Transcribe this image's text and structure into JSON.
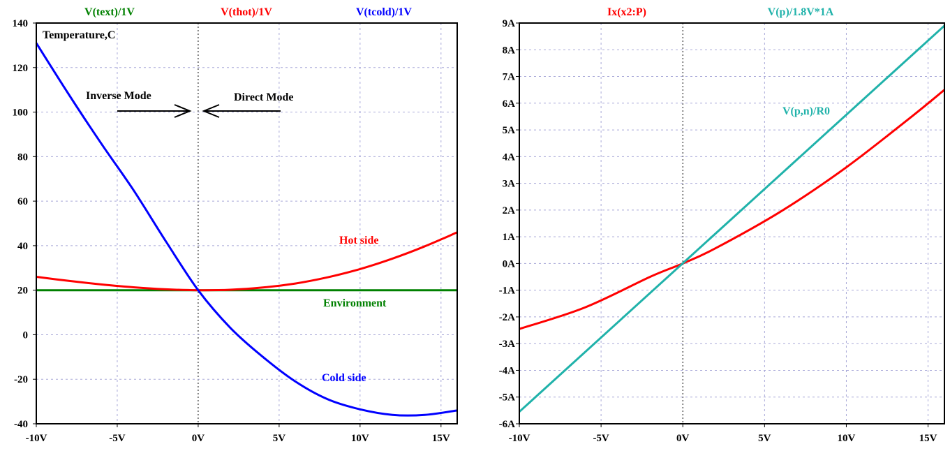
{
  "chart_data": [
    {
      "type": "line",
      "trace_names": [
        "V(text)/1V",
        "V(thot)/1V",
        "V(tcold)/1V"
      ],
      "xlim": [
        -10,
        16
      ],
      "ylim": [
        -40,
        140
      ],
      "x_ticks": [
        "-10V",
        "-5V",
        "0V",
        "5V",
        "10V",
        "15V"
      ],
      "y_ticks": [
        "140",
        "120",
        "100",
        "80",
        "60",
        "40",
        "20",
        "0",
        "-20",
        "-40"
      ],
      "grid": true,
      "inner_label": "Temperature,C",
      "annotations": {
        "inverse": "Inverse Mode",
        "direct": "Direct Mode",
        "hot": "Hot side",
        "env": "Environment",
        "cold": "Cold side"
      },
      "series": [
        {
          "name": "V(text)/1V",
          "color": "#008000",
          "x": [
            -10,
            16
          ],
          "y": [
            20,
            20
          ]
        },
        {
          "name": "V(thot)/1V",
          "color": "#ff0000",
          "x": [
            -10,
            -8,
            -6,
            -4,
            -2,
            0,
            2,
            4,
            6,
            8,
            10,
            12,
            14,
            16
          ],
          "y": [
            26,
            24.2,
            22.6,
            21.3,
            20.4,
            20,
            20.2,
            21.2,
            23,
            25.8,
            29.5,
            34.2,
            39.7,
            46
          ]
        },
        {
          "name": "V(tcold)/1V",
          "color": "#0000ff",
          "x": [
            -10,
            -8,
            -6,
            -4,
            -2,
            0,
            2,
            4,
            6,
            8,
            10,
            12,
            14,
            16
          ],
          "y": [
            131,
            108,
            86,
            65,
            42,
            20,
            3,
            -10,
            -21,
            -29,
            -33.5,
            -36,
            -36,
            -34
          ]
        }
      ]
    },
    {
      "type": "line",
      "trace_names": [
        "Ix(x2:P)",
        "V(p)/1.8V*1A"
      ],
      "xlim": [
        -10,
        16
      ],
      "ylim": [
        -6,
        9
      ],
      "x_ticks": [
        "-10V",
        "-5V",
        "0V",
        "5V",
        "10V",
        "15V"
      ],
      "y_ticks": [
        "9A",
        "8A",
        "7A",
        "6A",
        "5A",
        "4A",
        "3A",
        "2A",
        "1A",
        "0A",
        "-1A",
        "-2A",
        "-3A",
        "-4A",
        "-5A",
        "-6A"
      ],
      "grid": true,
      "annotations": {
        "rpn": "V(p,n)/R0"
      },
      "series": [
        {
          "name": "Ix(x2:P)",
          "color": "#ff0000",
          "x": [
            -10,
            -6,
            -2,
            0,
            2,
            6,
            10,
            14,
            16
          ],
          "y": [
            -2.45,
            -1.65,
            -0.5,
            0,
            0.57,
            1.95,
            3.6,
            5.5,
            6.5
          ]
        },
        {
          "name": "V(p)/1.8V*1A",
          "color": "#20b2aa",
          "x": [
            -10,
            16
          ],
          "y": [
            -5.55,
            8.9
          ]
        }
      ]
    }
  ]
}
